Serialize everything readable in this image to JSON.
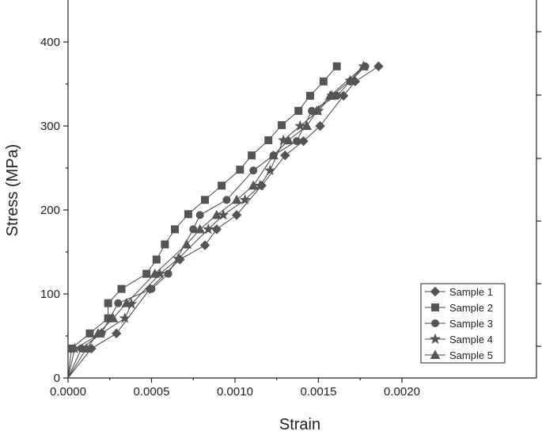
{
  "chart_data": {
    "type": "line",
    "title": "",
    "xlabel": "Strain",
    "ylabel": "Stress (MPa)",
    "xlim": [
      0,
      0.00225
    ],
    "ylim": [
      0,
      450
    ],
    "xticks": [
      0,
      0.0005,
      0.001,
      0.0015,
      0.002
    ],
    "xtick_labels": [
      "0.0000",
      "0.0005",
      "0.0010",
      "0.0015",
      "0.0020"
    ],
    "yticks": [
      0,
      100,
      200,
      300,
      400
    ],
    "ytick_labels": [
      "0",
      "100",
      "200",
      "300",
      "400"
    ],
    "grid": false,
    "legend_position": "bottom-right",
    "series": [
      {
        "name": "Sample 1",
        "marker": "diamond",
        "points": [
          [
            0,
            0
          ],
          [
            0.00014,
            35
          ],
          [
            0.00029,
            53
          ],
          [
            0.00049,
            106
          ],
          [
            0.00067,
            141
          ],
          [
            0.00082,
            158
          ],
          [
            0.00089,
            177
          ],
          [
            0.00101,
            194
          ],
          [
            0.00116,
            229
          ],
          [
            0.0013,
            265
          ],
          [
            0.00141,
            282
          ],
          [
            0.00151,
            300
          ],
          [
            0.00165,
            336
          ],
          [
            0.00172,
            353
          ],
          [
            0.00186,
            371
          ]
        ]
      },
      {
        "name": "Sample 2",
        "marker": "square",
        "points": [
          [
            0,
            0
          ],
          [
            2e-05,
            35
          ],
          [
            0.00013,
            53
          ],
          [
            0.00024,
            71
          ],
          [
            0.00024,
            89
          ],
          [
            0.00032,
            106
          ],
          [
            0.00047,
            124
          ],
          [
            0.00053,
            141
          ],
          [
            0.00058,
            159
          ],
          [
            0.00064,
            177
          ],
          [
            0.00072,
            195
          ],
          [
            0.00082,
            212
          ],
          [
            0.00092,
            229
          ],
          [
            0.00103,
            248
          ],
          [
            0.0011,
            265
          ],
          [
            0.0012,
            283
          ],
          [
            0.00128,
            301
          ],
          [
            0.00138,
            318
          ],
          [
            0.00145,
            336
          ],
          [
            0.00153,
            353
          ],
          [
            0.00161,
            371
          ]
        ]
      },
      {
        "name": "Sample 3",
        "marker": "circle",
        "points": [
          [
            0,
            0
          ],
          [
            8e-05,
            35
          ],
          [
            0.0002,
            53
          ],
          [
            0.0003,
            89
          ],
          [
            0.0005,
            106
          ],
          [
            0.0006,
            124
          ],
          [
            0.00075,
            177
          ],
          [
            0.00079,
            194
          ],
          [
            0.00095,
            212
          ],
          [
            0.00111,
            247
          ],
          [
            0.00123,
            265
          ],
          [
            0.00137,
            282
          ],
          [
            0.00146,
            318
          ],
          [
            0.00161,
            336
          ],
          [
            0.00169,
            353
          ],
          [
            0.00178,
            371
          ]
        ]
      },
      {
        "name": "Sample 4",
        "marker": "star",
        "points": [
          [
            0,
            0
          ],
          [
            4e-05,
            35
          ],
          [
            0.0002,
            53
          ],
          [
            0.00034,
            71
          ],
          [
            0.00038,
            88
          ],
          [
            0.00055,
            124
          ],
          [
            0.00066,
            142
          ],
          [
            0.00084,
            177
          ],
          [
            0.00093,
            194
          ],
          [
            0.00106,
            212
          ],
          [
            0.00115,
            229
          ],
          [
            0.00121,
            247
          ],
          [
            0.00129,
            283
          ],
          [
            0.00139,
            300
          ],
          [
            0.0015,
            318
          ],
          [
            0.00158,
            336
          ],
          [
            0.00169,
            354
          ],
          [
            0.00177,
            371
          ]
        ]
      },
      {
        "name": "Sample 5",
        "marker": "triangle",
        "points": [
          [
            0,
            0
          ],
          [
            0.00011,
            35
          ],
          [
            0.00018,
            53
          ],
          [
            0.00027,
            71
          ],
          [
            0.00035,
            89
          ],
          [
            0.00052,
            124
          ],
          [
            0.00071,
            159
          ],
          [
            0.00079,
            177
          ],
          [
            0.00089,
            194
          ],
          [
            0.00101,
            212
          ],
          [
            0.00111,
            229
          ],
          [
            0.00123,
            265
          ],
          [
            0.00132,
            283
          ],
          [
            0.00143,
            300
          ],
          [
            0.00149,
            318
          ],
          [
            0.00157,
            336
          ],
          [
            0.00177,
            371
          ]
        ]
      }
    ]
  }
}
